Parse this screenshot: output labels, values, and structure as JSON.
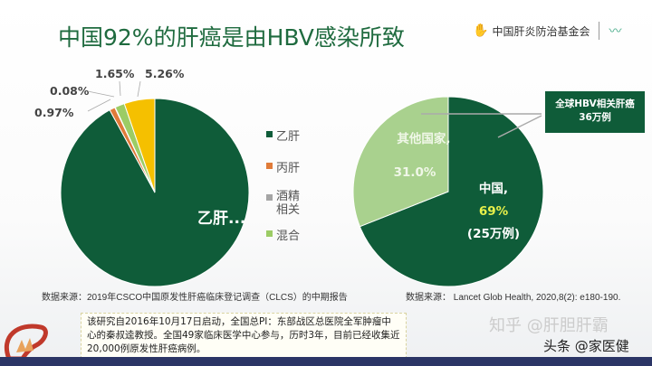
{
  "title": "中国92%的肝癌是由HBV感染所致",
  "logo": {
    "text": "中国肝炎防治基金会"
  },
  "chart_data": [
    {
      "type": "pie",
      "slices": [
        {
          "label": "乙肝",
          "value": 92.04,
          "color": "#0f5c39",
          "data_label": "乙肝..."
        },
        {
          "label": "丙肝",
          "value": 0.97,
          "color": "#e07b39",
          "data_label": "0.97%"
        },
        {
          "label": "酒精相关",
          "value": 0.08,
          "color": "#a5a5a5",
          "data_label": "0.08%"
        },
        {
          "label": "混合",
          "value": 1.65,
          "color": "#9ccc65",
          "data_label": "1.65%"
        },
        {
          "label": "",
          "value": 5.26,
          "color": "#f5c000",
          "data_label": "5.26%"
        }
      ],
      "legend": [
        "乙肝",
        "丙肝",
        "酒精相关",
        "混合"
      ],
      "legend_placement": "right",
      "source": "数据来源：2019年CSCO中国原发性肝癌临床登记调查（CLCS）的中期报告"
    },
    {
      "type": "pie",
      "slices": [
        {
          "label": "中国,",
          "value": 69,
          "color": "#0f5c39",
          "data_label": "69%",
          "extra": "(25万例)"
        },
        {
          "label": "其他国家,",
          "value": 31.0,
          "color": "#a9d18e",
          "data_label": "31.0%"
        }
      ],
      "callout": {
        "line1": "全球HBV相关肝癌",
        "line2": "36万例"
      },
      "source": "数据来源：  Lancet Glob Health, 2020,8(2): e180-190."
    }
  ],
  "note": "该研究自2016年10月17日启动，全国总PI：东部战区总医院全军肿瘤中心的秦叔逵教授。全国49家临床医学中心参与，历时3年，目前已经收集近20,000例原发性肝癌病例。",
  "watermarks": [
    "知乎 @肝胆肝霸",
    "头条 @家医健"
  ]
}
